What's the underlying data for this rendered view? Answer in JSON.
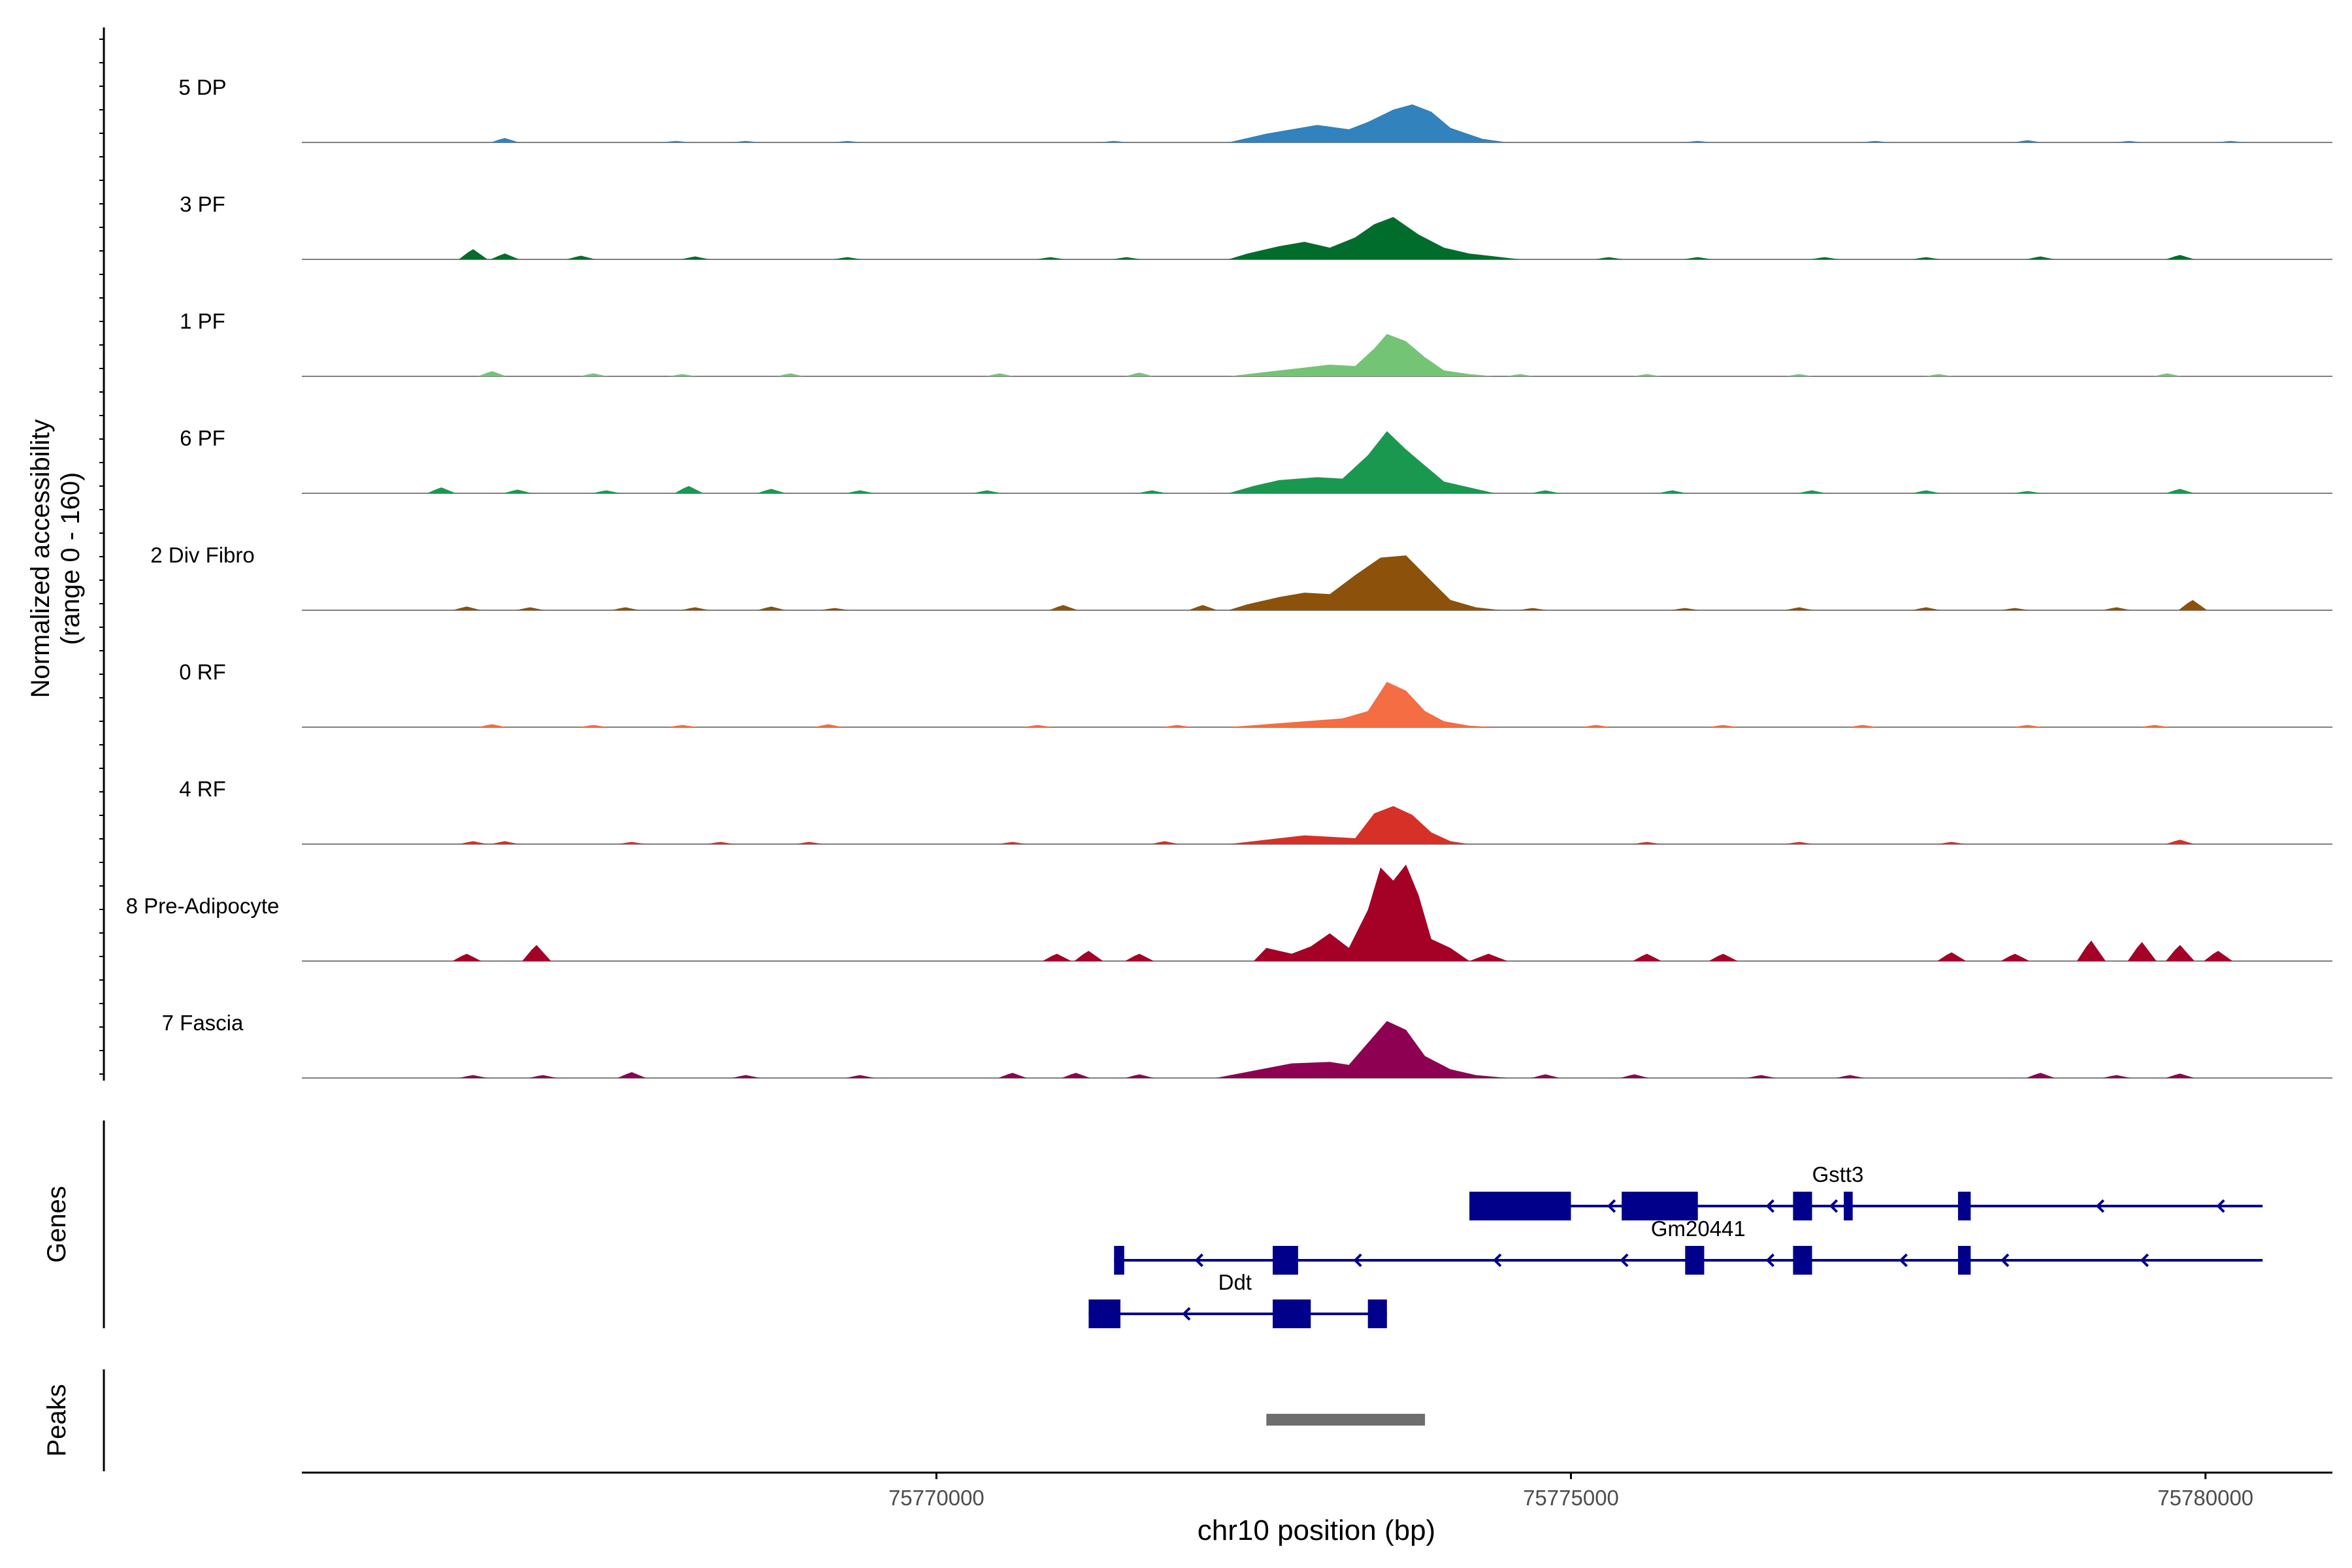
{
  "chart_data": {
    "type": "area",
    "title": "",
    "xlabel": "chr10 position (bp)",
    "ylabel_line1": "Normalized accessibility",
    "ylabel_line2": "(range 0 - 160)",
    "xlim": [
      75765000,
      75781000
    ],
    "x_ticks": [
      75770000,
      75775000,
      75780000
    ],
    "x_tick_labels": [
      "75770000",
      "75775000",
      "75780000"
    ],
    "ylim": [
      0,
      160
    ],
    "data_extent": [
      75765000,
      75780450
    ],
    "tracks": [
      {
        "name": "5 DP",
        "color": "#3182BD",
        "peaks": [
          [
            75766600,
            6
          ],
          [
            75767950,
            2
          ],
          [
            75768500,
            2
          ],
          [
            75769300,
            2
          ],
          [
            75771400,
            2
          ],
          [
            75772400,
            2
          ],
          [
            75774000,
            2
          ],
          [
            75776000,
            2
          ],
          [
            75777400,
            2
          ],
          [
            75778600,
            3
          ],
          [
            75779400,
            2
          ],
          [
            75780200,
            2
          ]
        ],
        "profile": [
          [
            75772300,
            0
          ],
          [
            75772600,
            12
          ],
          [
            75773000,
            24
          ],
          [
            75773250,
            18
          ],
          [
            75773400,
            28
          ],
          [
            75773600,
            45
          ],
          [
            75773750,
            52
          ],
          [
            75773900,
            42
          ],
          [
            75774050,
            20
          ],
          [
            75774300,
            5
          ],
          [
            75774500,
            0
          ]
        ]
      },
      {
        "name": "3 PF",
        "color": "#006D2C",
        "peaks": [
          [
            75766350,
            14
          ],
          [
            75766600,
            8
          ],
          [
            75767200,
            5
          ],
          [
            75768100,
            4
          ],
          [
            75769300,
            3
          ],
          [
            75770900,
            3
          ],
          [
            75771500,
            3
          ],
          [
            75775300,
            3
          ],
          [
            75776000,
            3
          ],
          [
            75777000,
            3
          ],
          [
            75777800,
            3
          ],
          [
            75778700,
            4
          ],
          [
            75779800,
            6
          ]
        ],
        "profile": [
          [
            75772300,
            0
          ],
          [
            75772450,
            8
          ],
          [
            75772700,
            18
          ],
          [
            75772900,
            24
          ],
          [
            75773100,
            16
          ],
          [
            75773300,
            30
          ],
          [
            75773450,
            48
          ],
          [
            75773600,
            58
          ],
          [
            75773800,
            34
          ],
          [
            75774000,
            16
          ],
          [
            75774200,
            8
          ],
          [
            75774400,
            4
          ],
          [
            75774600,
            0
          ]
        ]
      },
      {
        "name": "1 PF",
        "color": "#74C476",
        "peaks": [
          [
            75766500,
            7
          ],
          [
            75767300,
            4
          ],
          [
            75768000,
            3
          ],
          [
            75768850,
            4
          ],
          [
            75770500,
            4
          ],
          [
            75771600,
            5
          ],
          [
            75774600,
            3
          ],
          [
            75775600,
            3
          ],
          [
            75776800,
            3
          ],
          [
            75777900,
            3
          ],
          [
            75779700,
            4
          ]
        ],
        "profile": [
          [
            75772300,
            0
          ],
          [
            75772600,
            6
          ],
          [
            75772900,
            12
          ],
          [
            75773100,
            16
          ],
          [
            75773300,
            14
          ],
          [
            75773450,
            38
          ],
          [
            75773550,
            58
          ],
          [
            75773700,
            48
          ],
          [
            75773850,
            26
          ],
          [
            75774000,
            8
          ],
          [
            75774200,
            3
          ],
          [
            75774400,
            0
          ]
        ]
      },
      {
        "name": "6 PF",
        "color": "#1A9850",
        "peaks": [
          [
            75766100,
            8
          ],
          [
            75766700,
            5
          ],
          [
            75767400,
            4
          ],
          [
            75768050,
            10
          ],
          [
            75768700,
            6
          ],
          [
            75769400,
            4
          ],
          [
            75770400,
            4
          ],
          [
            75771700,
            4
          ],
          [
            75774800,
            4
          ],
          [
            75775800,
            4
          ],
          [
            75776900,
            4
          ],
          [
            75777800,
            4
          ],
          [
            75778600,
            3
          ],
          [
            75779800,
            6
          ]
        ],
        "profile": [
          [
            75772300,
            0
          ],
          [
            75772500,
            10
          ],
          [
            75772700,
            18
          ],
          [
            75773000,
            22
          ],
          [
            75773200,
            20
          ],
          [
            75773400,
            52
          ],
          [
            75773550,
            85
          ],
          [
            75773700,
            60
          ],
          [
            75773850,
            38
          ],
          [
            75774000,
            16
          ],
          [
            75774200,
            8
          ],
          [
            75774400,
            0
          ]
        ]
      },
      {
        "name": "2 Div Fibro",
        "color": "#8C510A",
        "peaks": [
          [
            75766300,
            5
          ],
          [
            75766800,
            4
          ],
          [
            75767550,
            4
          ],
          [
            75768100,
            4
          ],
          [
            75768700,
            5
          ],
          [
            75769200,
            3
          ],
          [
            75771000,
            7
          ],
          [
            75772100,
            7
          ],
          [
            75774700,
            3
          ],
          [
            75775900,
            3
          ],
          [
            75776800,
            4
          ],
          [
            75777800,
            4
          ],
          [
            75778500,
            3
          ],
          [
            75779300,
            4
          ],
          [
            75779900,
            14
          ]
        ],
        "profile": [
          [
            75772300,
            0
          ],
          [
            75772450,
            8
          ],
          [
            75772700,
            18
          ],
          [
            75772900,
            24
          ],
          [
            75773100,
            22
          ],
          [
            75773300,
            48
          ],
          [
            75773500,
            72
          ],
          [
            75773700,
            75
          ],
          [
            75773900,
            40
          ],
          [
            75774050,
            14
          ],
          [
            75774250,
            4
          ],
          [
            75774450,
            0
          ]
        ]
      },
      {
        "name": "0 RF",
        "color": "#F46D43",
        "peaks": [
          [
            75766500,
            4
          ],
          [
            75767300,
            3
          ],
          [
            75768000,
            3
          ],
          [
            75769150,
            4
          ],
          [
            75770800,
            3
          ],
          [
            75771900,
            3
          ],
          [
            75775200,
            3
          ],
          [
            75776200,
            3
          ],
          [
            75777300,
            3
          ],
          [
            75778600,
            3
          ],
          [
            75779600,
            3
          ]
        ],
        "profile": [
          [
            75772300,
            0
          ],
          [
            75772600,
            4
          ],
          [
            75772900,
            8
          ],
          [
            75773200,
            12
          ],
          [
            75773400,
            22
          ],
          [
            75773550,
            62
          ],
          [
            75773700,
            50
          ],
          [
            75773850,
            22
          ],
          [
            75774000,
            8
          ],
          [
            75774200,
            2
          ],
          [
            75774400,
            0
          ]
        ]
      },
      {
        "name": "4 RF",
        "color": "#D73027",
        "peaks": [
          [
            75766350,
            4
          ],
          [
            75766600,
            4
          ],
          [
            75767600,
            3
          ],
          [
            75768300,
            3
          ],
          [
            75769000,
            3
          ],
          [
            75770600,
            3
          ],
          [
            75771800,
            4
          ],
          [
            75775600,
            3
          ],
          [
            75776800,
            3
          ],
          [
            75778000,
            3
          ],
          [
            75779800,
            6
          ]
        ],
        "profile": [
          [
            75772300,
            0
          ],
          [
            75772600,
            6
          ],
          [
            75772900,
            12
          ],
          [
            75773100,
            10
          ],
          [
            75773300,
            8
          ],
          [
            75773450,
            42
          ],
          [
            75773600,
            52
          ],
          [
            75773750,
            40
          ],
          [
            75773900,
            16
          ],
          [
            75774050,
            4
          ],
          [
            75774200,
            0
          ]
        ]
      },
      {
        "name": "8 Pre-Adipocyte",
        "color": "#A50026",
        "peaks": [
          [
            75766300,
            10
          ],
          [
            75766850,
            22
          ],
          [
            75770950,
            10
          ],
          [
            75771200,
            14
          ],
          [
            75771600,
            10
          ],
          [
            75775600,
            10
          ],
          [
            75776200,
            10
          ],
          [
            75778000,
            12
          ],
          [
            75778500,
            10
          ],
          [
            75779100,
            28
          ],
          [
            75779500,
            26
          ],
          [
            75779800,
            22
          ],
          [
            75780100,
            14
          ]
        ],
        "profile": [
          [
            75772500,
            0
          ],
          [
            75772600,
            18
          ],
          [
            75772800,
            10
          ],
          [
            75772950,
            20
          ],
          [
            75773100,
            38
          ],
          [
            75773250,
            18
          ],
          [
            75773400,
            70
          ],
          [
            75773500,
            128
          ],
          [
            75773600,
            110
          ],
          [
            75773700,
            132
          ],
          [
            75773800,
            90
          ],
          [
            75773900,
            30
          ],
          [
            75774050,
            18
          ],
          [
            75774200,
            0
          ],
          [
            75774350,
            10
          ],
          [
            75774500,
            0
          ]
        ]
      },
      {
        "name": "7 Fascia",
        "color": "#8E0152",
        "peaks": [
          [
            75766350,
            4
          ],
          [
            75766900,
            4
          ],
          [
            75767600,
            8
          ],
          [
            75768500,
            4
          ],
          [
            75769400,
            4
          ],
          [
            75770600,
            7
          ],
          [
            75771100,
            7
          ],
          [
            75771600,
            5
          ],
          [
            75774800,
            5
          ],
          [
            75775500,
            5
          ],
          [
            75776500,
            4
          ],
          [
            75777200,
            4
          ],
          [
            75778700,
            7
          ],
          [
            75779300,
            4
          ],
          [
            75779800,
            6
          ]
        ],
        "profile": [
          [
            75772200,
            0
          ],
          [
            75772500,
            10
          ],
          [
            75772800,
            20
          ],
          [
            75773100,
            22
          ],
          [
            75773250,
            18
          ],
          [
            75773400,
            48
          ],
          [
            75773550,
            78
          ],
          [
            75773700,
            66
          ],
          [
            75773850,
            30
          ],
          [
            75774050,
            12
          ],
          [
            75774250,
            4
          ],
          [
            75774500,
            0
          ]
        ]
      }
    ],
    "genes": {
      "label": "Genes",
      "transcripts": [
        {
          "gene": "Gstt3",
          "row": 0,
          "start": 75774200,
          "end": 75780450,
          "exons": [
            [
              75774200,
              75775000
            ],
            [
              75775400,
              75776000
            ],
            [
              75776750,
              75776900
            ],
            [
              75777150,
              75777220
            ],
            [
              75778050,
              75778150
            ]
          ],
          "arrows": [
            75775300,
            75776550,
            75777050,
            75779150,
            75780100
          ]
        },
        {
          "gene": "Gm20441",
          "row": 1,
          "start": 75771400,
          "end": 75780450,
          "exons": [
            [
              75771400,
              75771480
            ],
            [
              75772650,
              75772850
            ],
            [
              75775900,
              75776050
            ],
            [
              75776750,
              75776900
            ],
            [
              75778050,
              75778150
            ]
          ],
          "arrows": [
            75772050,
            75773300,
            75774400,
            75775400,
            75776550,
            75777600,
            75778400,
            75779500
          ]
        },
        {
          "gene": "Ddt",
          "row": 2,
          "start": 75771200,
          "end": 75773550,
          "exons": [
            [
              75771200,
              75771450
            ],
            [
              75772650,
              75772950
            ],
            [
              75773400,
              75773550
            ]
          ],
          "arrows": [
            75771950
          ]
        }
      ],
      "gene_labels": [
        {
          "text": "Gstt3",
          "x": 75777000,
          "row": 0
        },
        {
          "text": "Gm20441",
          "x": 75775900,
          "row": 1
        },
        {
          "text": "Ddt",
          "x": 75772250,
          "row": 2
        }
      ]
    },
    "peaks_track": {
      "label": "Peaks",
      "regions": [
        [
          75772600,
          75773850
        ]
      ]
    }
  },
  "colors": {
    "gene": "#00008B",
    "peak_region": "#6E6E6E",
    "baseline": "#808080",
    "axis": "#000000"
  }
}
